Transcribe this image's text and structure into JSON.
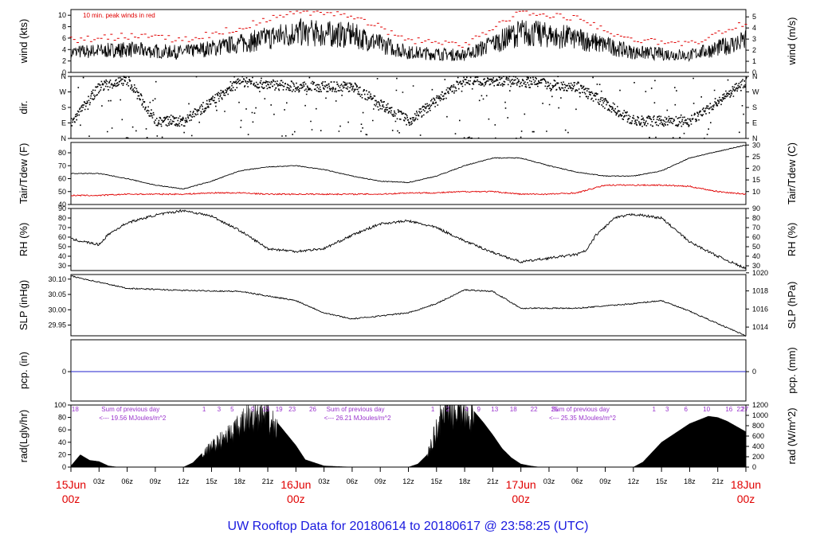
{
  "title": "UW Rooftop Data for 20180614  to  20180617 @ 23:58:25  (UTC)",
  "colors": {
    "title": "#1a1adf",
    "day": "#e00000",
    "peak": "#e00000",
    "dew": "#e00000",
    "pcp": "#2020cc",
    "rad_note": "#9933cc"
  },
  "x_axis": {
    "hour_ticks": [
      "03z",
      "06z",
      "09z",
      "12z",
      "15z",
      "18z",
      "21z",
      "03z",
      "06z",
      "09z",
      "12z",
      "15z",
      "18z",
      "21z",
      "03z",
      "06z",
      "09z",
      "12z",
      "15z",
      "18z",
      "21z"
    ],
    "day_labels": [
      {
        "date": "15Jun",
        "hour": "00z"
      },
      {
        "date": "16Jun",
        "hour": "00z"
      },
      {
        "date": "17Jun",
        "hour": "00z"
      },
      {
        "date": "18Jun",
        "hour": "00z"
      }
    ]
  },
  "chart_data": [
    {
      "type": "line",
      "ylabel": "wind (kts)",
      "ylabel_right": "wind (m/s)",
      "ylim": [
        0,
        11
      ],
      "yticks_left": [
        "0",
        "2",
        "4",
        "6",
        "8",
        "10"
      ],
      "yticks_right": [
        "0",
        "1",
        "2",
        "3",
        "4",
        "5"
      ],
      "annotation": "10 min. peak winds in red",
      "series": [
        {
          "x": [
            0,
            6,
            12,
            18,
            24,
            30,
            36,
            42,
            48,
            54,
            60,
            66,
            72
          ],
          "values": [
            3.5,
            4,
            3.5,
            5,
            7,
            6.5,
            3.5,
            3,
            7,
            6,
            3.5,
            3,
            5.5
          ]
        }
      ]
    },
    {
      "type": "scatter",
      "ylabel": "dir.",
      "yticks_left": [
        "N",
        "E",
        "S",
        "W",
        "N"
      ],
      "yticks_right": [
        "N",
        "E",
        "S",
        "W",
        "N"
      ],
      "ylim": [
        0,
        360
      ],
      "series": [
        {
          "x": [
            0,
            3,
            6,
            9,
            12,
            18,
            24,
            30,
            36,
            42,
            48,
            54,
            60,
            66,
            72
          ],
          "values": [
            90,
            300,
            340,
            100,
            100,
            330,
            300,
            300,
            100,
            340,
            330,
            300,
            100,
            100,
            330
          ]
        }
      ]
    },
    {
      "type": "line",
      "ylabel": "Tair/Tdew (F)",
      "ylabel_right": "Tair/Tdew (C)",
      "ylim": [
        40,
        88
      ],
      "yticks_left": [
        "40",
        "50",
        "60",
        "70",
        "80"
      ],
      "yticks_right": [
        "10",
        "15",
        "20",
        "25",
        "30"
      ],
      "series": [
        {
          "x": [
            0,
            3,
            6,
            9,
            12,
            15,
            18,
            21,
            24,
            27,
            30,
            33,
            36,
            39,
            42,
            45,
            48,
            51,
            54,
            57,
            60,
            63,
            66,
            69,
            72
          ],
          "values": [
            64,
            64,
            60,
            55,
            52,
            58,
            66,
            69,
            70,
            67,
            62,
            58,
            57,
            62,
            70,
            76,
            76,
            70,
            65,
            62,
            62,
            66,
            76,
            81,
            86
          ]
        },
        {
          "x": [
            0,
            3,
            6,
            9,
            12,
            15,
            18,
            21,
            24,
            27,
            30,
            33,
            36,
            39,
            42,
            45,
            48,
            51,
            54,
            57,
            60,
            63,
            66,
            69,
            72
          ],
          "values": [
            47,
            47,
            48,
            48,
            48,
            49,
            49,
            48,
            48,
            48,
            48,
            48,
            49,
            49,
            50,
            50,
            48,
            48,
            49,
            55,
            55,
            55,
            54,
            50,
            48
          ]
        }
      ]
    },
    {
      "type": "line",
      "ylabel": "RH (%)",
      "ylabel_right": "RH (%)",
      "ylim": [
        25,
        90
      ],
      "yticks_left": [
        "30",
        "40",
        "50",
        "60",
        "70",
        "80",
        "90"
      ],
      "yticks_right": [
        "30",
        "40",
        "50",
        "60",
        "70",
        "80",
        "90"
      ],
      "series": [
        {
          "x": [
            0,
            3,
            4,
            6,
            9,
            12,
            15,
            18,
            21,
            24,
            27,
            30,
            33,
            36,
            39,
            42,
            45,
            48,
            51,
            54,
            55,
            56,
            58,
            60,
            63,
            66,
            69,
            72
          ],
          "values": [
            58,
            52,
            63,
            75,
            83,
            88,
            82,
            67,
            48,
            45,
            48,
            62,
            74,
            77,
            70,
            56,
            44,
            34,
            38,
            42,
            46,
            62,
            80,
            84,
            80,
            55,
            40,
            27
          ]
        }
      ]
    },
    {
      "type": "line",
      "ylabel": "SLP (inHg)",
      "ylabel_right": "SLP (hPa)",
      "ylim": [
        29.915,
        30.115
      ],
      "yticks_left": [
        "29.95",
        "30.00",
        "30.05",
        "30.10"
      ],
      "yticks_right": [
        "1014",
        "1016",
        "1018",
        "1020"
      ],
      "series": [
        {
          "x": [
            0,
            6,
            12,
            18,
            24,
            27,
            30,
            36,
            39,
            42,
            45,
            48,
            54,
            60,
            63,
            66,
            69,
            72
          ],
          "values": [
            30.11,
            30.07,
            30.063,
            30.06,
            30.03,
            29.99,
            29.97,
            29.99,
            30.02,
            30.065,
            30.06,
            30.005,
            30.005,
            30.02,
            30.03,
            29.995,
            29.955,
            29.915
          ]
        }
      ]
    },
    {
      "type": "line",
      "ylabel": "pcp. (in)",
      "ylabel_right": "pcp. (mm)",
      "yticks_left": [
        "0"
      ],
      "yticks_right": [
        "0"
      ],
      "series": [
        {
          "x": [
            0,
            72
          ],
          "values": [
            0,
            0
          ]
        }
      ]
    },
    {
      "type": "area",
      "ylabel": "rad(Lgly/hr)",
      "ylabel_right": "rad (W/m^2)",
      "ylim": [
        0,
        100
      ],
      "yticks_left": [
        "0",
        "20",
        "40",
        "60",
        "80",
        "100"
      ],
      "yticks_right": [
        "0",
        "200",
        "400",
        "600",
        "800",
        "1000",
        "1200"
      ],
      "sun_labels": [
        "18",
        "1",
        "3",
        "5",
        "9",
        "13",
        "19",
        "23",
        "26",
        "1",
        "2",
        "4",
        "9",
        "13",
        "18",
        "22",
        "25",
        "1",
        "3",
        "6",
        "10",
        "16",
        "22",
        "27"
      ],
      "annotations": [
        {
          "heading": "Sum of previous day",
          "value": "<--- 19.56 MJoules/m^2"
        },
        {
          "heading": "Sum of previous day",
          "value": "<--- 26.21 MJoules/m^2"
        },
        {
          "heading": "Sum of previous day",
          "value": "<--- 25.35 MJoules/m^2"
        }
      ],
      "series": [
        {
          "x": [
            0,
            1,
            2,
            3,
            4,
            5,
            10,
            12,
            13,
            15,
            18,
            19,
            20,
            21,
            22,
            24,
            25,
            27,
            30,
            36,
            37,
            38,
            39,
            40,
            42,
            43,
            44,
            45,
            46,
            47,
            48,
            49,
            50,
            54,
            60,
            61,
            63,
            66,
            68,
            69,
            70,
            72
          ],
          "values": [
            2,
            20,
            11,
            9,
            2,
            0,
            0,
            0,
            7,
            38,
            75,
            95,
            100,
            92,
            72,
            35,
            12,
            2,
            0,
            0,
            5,
            20,
            72,
            110,
            105,
            90,
            72,
            52,
            30,
            15,
            5,
            2,
            0,
            0,
            0,
            8,
            40,
            70,
            82,
            80,
            74,
            57
          ]
        }
      ]
    }
  ]
}
